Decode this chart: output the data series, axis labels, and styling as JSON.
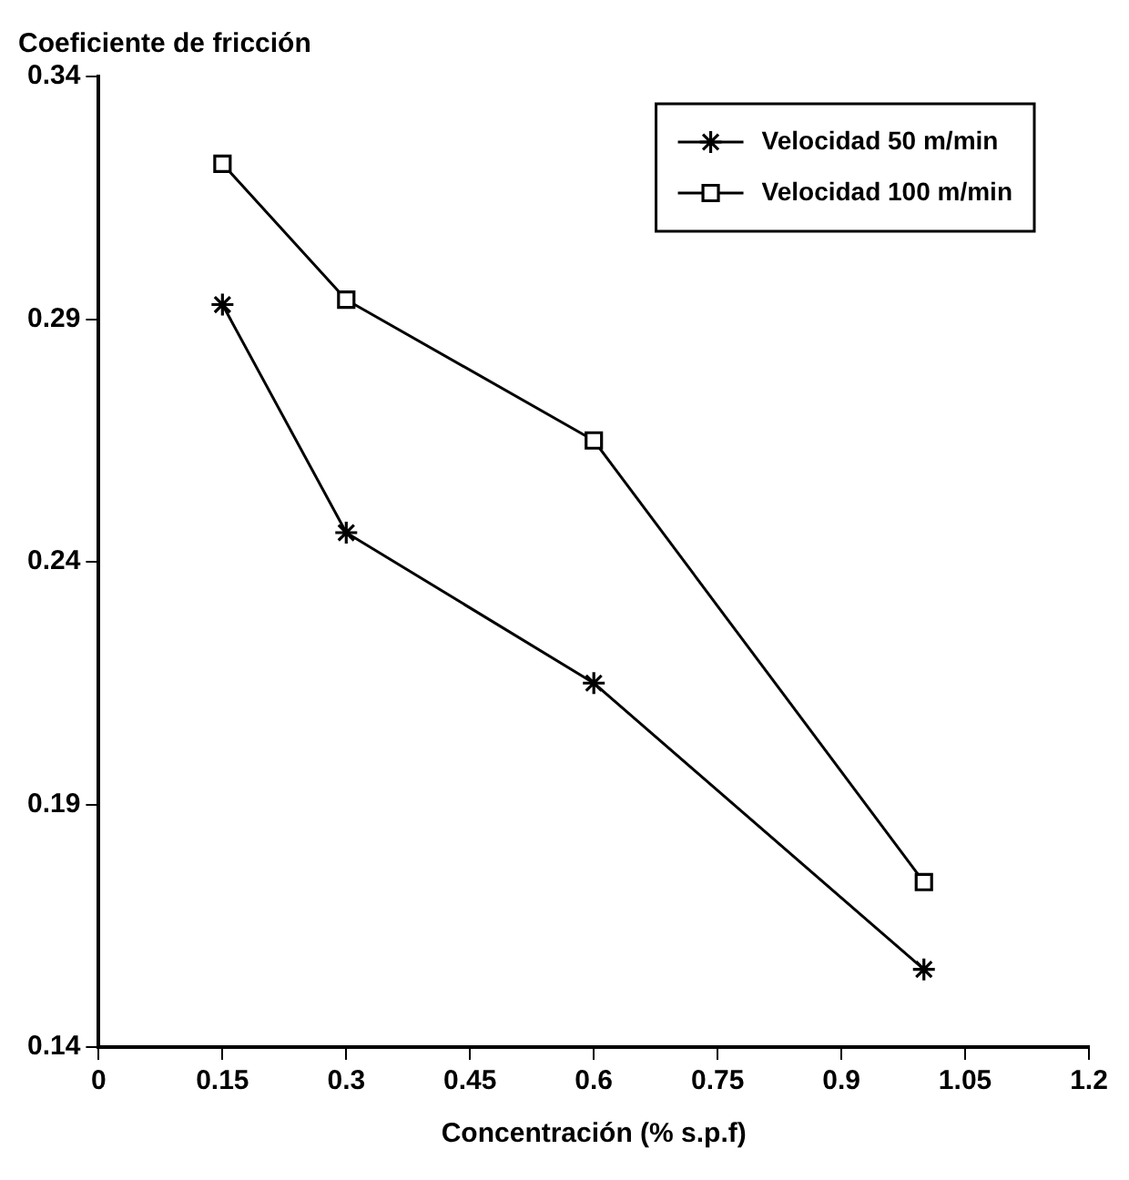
{
  "chart_data": {
    "type": "line",
    "xlabel": "Concentración (% s.p.f)",
    "ylabel": "Coeficiente de fricción",
    "x": [
      0.15,
      0.3,
      0.6,
      1.0
    ],
    "series": [
      {
        "name": "Velocidad 50 m/min",
        "color": "#000000",
        "marker": "cross",
        "values": [
          0.293,
          0.246,
          0.215,
          0.156
        ]
      },
      {
        "name": "Velocidad 100 m/min",
        "color": "#000000",
        "marker": "square",
        "values": [
          0.322,
          0.294,
          0.265,
          0.174
        ]
      }
    ],
    "xlim": [
      0,
      1.2
    ],
    "xticks": [
      0,
      0.15,
      0.3,
      0.45,
      0.6,
      0.75,
      0.9,
      1.05,
      1.2
    ],
    "ylim": [
      0.14,
      0.34
    ],
    "yticks": [
      0.14,
      0.19,
      0.24,
      0.29,
      0.34
    ],
    "grid": false,
    "legend": "top right",
    "line_style": "solid"
  }
}
